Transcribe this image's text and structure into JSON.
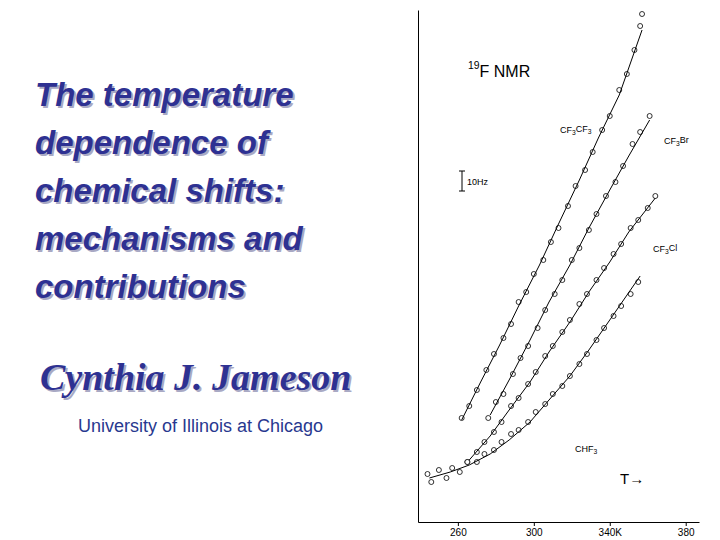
{
  "slide": {
    "title_lines": [
      "The temperature",
      "dependence of",
      "chemical shifts:",
      "mechanisms and",
      "contributions"
    ],
    "author": "Cynthia J. Jameson",
    "affiliation": "University of Illinois at Chicago"
  },
  "chart_data": {
    "type": "scatter",
    "title": "19F NMR",
    "x_label": "T→",
    "color": "#000000",
    "xlim": [
      239,
      387
    ],
    "xticks": [
      260,
      300,
      {
        "value": 340,
        "label": "340K"
      },
      380
    ],
    "ylim": [
      0,
      256
    ],
    "yticks": [],
    "tick_labels": "x",
    "grid": false,
    "scale_bar": {
      "value": 10,
      "label": "10Hz"
    },
    "series": [
      {
        "name": "CF3CF3",
        "type": "scatter",
        "marker": "circle",
        "x": [
          262,
          266,
          270,
          275,
          279,
          284,
          288,
          292,
          296,
          300,
          305,
          309,
          313,
          318,
          322,
          327,
          331,
          336,
          340,
          345,
          349,
          353,
          356,
          357
        ],
        "values": [
          52,
          58,
          66,
          76,
          84,
          92,
          99,
          110,
          115,
          124,
          131,
          140,
          147,
          158,
          168,
          176,
          185,
          196,
          203,
          216,
          224,
          236,
          248,
          254
        ]
      },
      {
        "type": "line",
        "line_style": "solid",
        "x": [
          262,
          272,
          282,
          292,
          303,
          313,
          324,
          334,
          345,
          357
        ],
        "values": [
          51,
          70,
          88.5,
          108,
          128.5,
          149,
          171,
          192,
          213.5,
          246
        ]
      },
      {
        "name": "CF3Br",
        "type": "scatter",
        "marker": "circle",
        "x": [
          276,
          280,
          284,
          289,
          293,
          297,
          302,
          306,
          311,
          315,
          320,
          324,
          329,
          333,
          338,
          343,
          347,
          352,
          356,
          361
        ],
        "values": [
          52,
          60,
          64,
          74,
          82,
          88,
          97,
          106,
          114,
          121,
          131,
          137,
          146,
          154,
          163,
          170,
          178,
          189,
          195,
          203
        ]
      },
      {
        "type": "line",
        "line_style": "solid",
        "x": [
          277,
          287,
          298,
          308,
          319,
          329,
          340,
          350,
          361
        ],
        "values": [
          53.5,
          71,
          91,
          110,
          128.5,
          147,
          166,
          183,
          201
        ]
      },
      {
        "name": "CF3Cl",
        "type": "scatter",
        "marker": "circle",
        "x": [
          265,
          270,
          274,
          279,
          283,
          288,
          292,
          297,
          301,
          306,
          310,
          315,
          319,
          324,
          328,
          333,
          337,
          342,
          346,
          351,
          355,
          360,
          364
        ],
        "values": [
          30,
          35,
          40,
          45,
          50,
          58,
          62,
          69,
          75,
          83,
          88,
          95,
          101,
          109,
          114,
          121,
          127,
          134,
          139,
          147,
          151,
          157,
          163
        ]
      },
      {
        "type": "line",
        "line_style": "solid",
        "x": [
          266,
          277,
          287,
          298,
          308,
          319,
          329,
          340,
          350,
          364
        ],
        "values": [
          31,
          43,
          56,
          70,
          85,
          100,
          115,
          130,
          145,
          162
        ]
      },
      {
        "name": "CHF3",
        "type": "scatter",
        "marker": "circle",
        "x": [
          244,
          246,
          250,
          254,
          257,
          261,
          265,
          270,
          274,
          279,
          283,
          288,
          292,
          297,
          301,
          306,
          310,
          315,
          319,
          324,
          328,
          333,
          337,
          342,
          346,
          351,
          355
        ],
        "values": [
          24,
          20,
          26,
          22,
          27,
          25,
          30,
          30,
          34,
          36,
          40,
          44,
          46,
          50,
          55,
          59,
          64,
          68,
          73,
          79,
          84,
          91,
          97,
          103,
          108,
          114,
          120
        ]
      },
      {
        "type": "line",
        "line_style": "solid",
        "x": [
          245,
          256,
          266,
          277,
          287,
          298,
          308,
          319,
          329,
          340,
          356
        ],
        "values": [
          22,
          25,
          28.5,
          34,
          41,
          50,
          61,
          73,
          86,
          101,
          123
        ]
      }
    ]
  }
}
